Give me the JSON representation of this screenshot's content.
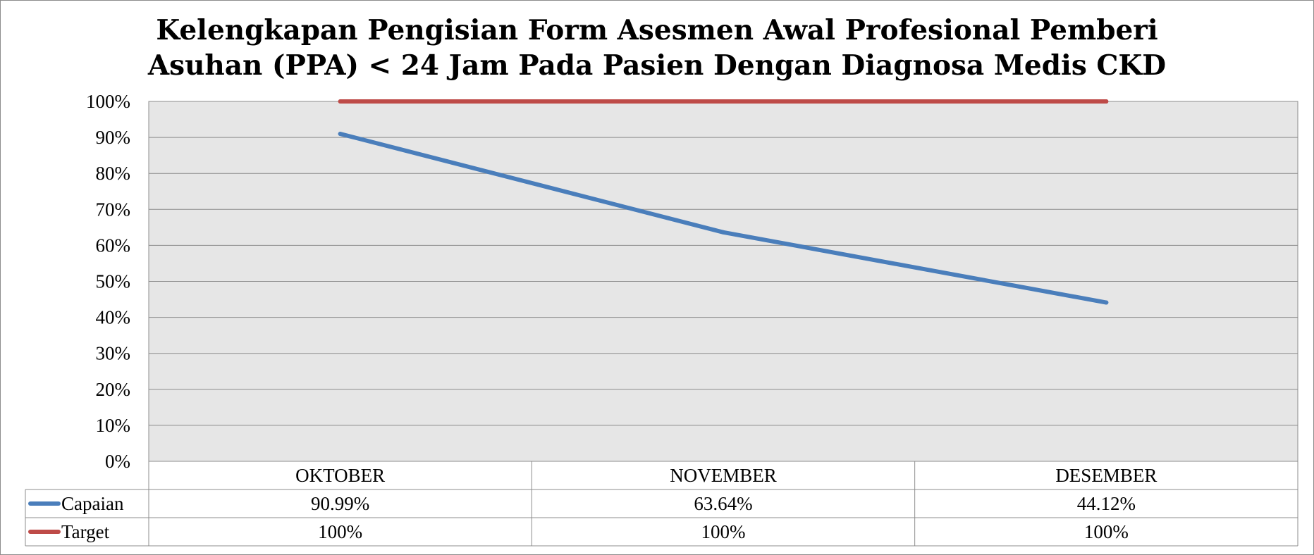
{
  "chart_data": {
    "type": "line",
    "title": "Kelengkapan Pengisian Form Asesmen Awal Profesional Pemberi Asuhan (PPA) < 24 Jam Pada Pasien Dengan Diagnosa Medis CKD",
    "title_lines": [
      "Kelengkapan Pengisian Form Asesmen Awal Profesional Pemberi",
      "Asuhan (PPA) < 24 Jam Pada Pasien Dengan Diagnosa Medis CKD"
    ],
    "categories": [
      "OKTOBER",
      "NOVEMBER",
      "DESEMBER"
    ],
    "series": [
      {
        "name": "Capaian",
        "values": [
          90.99,
          63.64,
          44.12
        ],
        "labels": [
          "90.99%",
          "63.64%",
          "44.12%"
        ],
        "color": "#4a7ebb"
      },
      {
        "name": "Target",
        "values": [
          100,
          100,
          100
        ],
        "labels": [
          "100%",
          "100%",
          "100%"
        ],
        "color": "#be4b48"
      }
    ],
    "y_ticks": [
      "0%",
      "10%",
      "20%",
      "30%",
      "40%",
      "50%",
      "60%",
      "70%",
      "80%",
      "90%",
      "100%"
    ],
    "ylim": [
      0,
      100
    ],
    "grid": true,
    "legend": "data-table",
    "plot_background": "#e6e6e6"
  }
}
